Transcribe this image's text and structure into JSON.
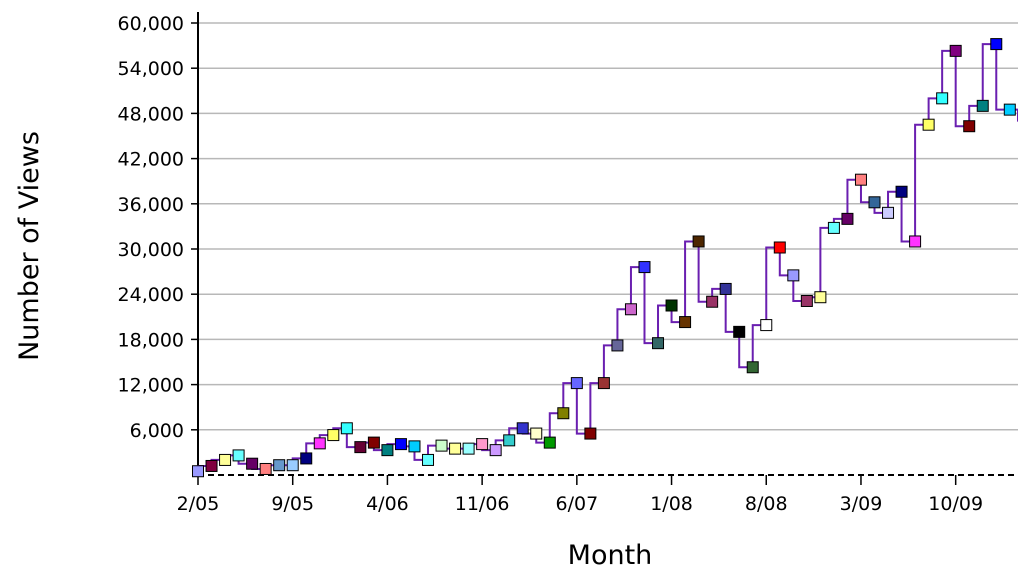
{
  "chart_data": {
    "type": "line",
    "xlabel": "Month",
    "ylabel": "Number of Views",
    "ylim": [
      0,
      60000
    ],
    "yticks": [
      6000,
      12000,
      18000,
      24000,
      30000,
      36000,
      42000,
      48000,
      54000,
      60000
    ],
    "ytick_labels": [
      "6,000",
      "12,000",
      "18,000",
      "24,000",
      "30,000",
      "36,000",
      "42,000",
      "48,000",
      "54,000",
      "60,000"
    ],
    "xtick_labels": [
      {
        "index": 0,
        "label": "2/05"
      },
      {
        "index": 7,
        "label": "9/05"
      },
      {
        "index": 14,
        "label": "4/06"
      },
      {
        "index": 21,
        "label": "11/06"
      },
      {
        "index": 28,
        "label": "6/07"
      },
      {
        "index": 35,
        "label": "1/08"
      },
      {
        "index": 42,
        "label": "8/08"
      },
      {
        "index": 49,
        "label": "3/09"
      },
      {
        "index": 56,
        "label": "10/09"
      }
    ],
    "grid": true,
    "line_color": "#6a1fb0",
    "series": [
      {
        "values": [
          500,
          1200,
          2000,
          2600,
          1500,
          800,
          1300,
          1300,
          2200,
          4200,
          5300,
          6200,
          3700,
          4300,
          3300,
          4100,
          3800,
          2000,
          3900,
          3500,
          3500,
          4100,
          3300,
          4600,
          6200,
          5500,
          4300,
          8200,
          12200,
          5500,
          12200,
          17200,
          22000,
          27600,
          17500,
          22500,
          20300,
          31000,
          23000,
          24700,
          19000,
          14300,
          19900,
          30200,
          26500,
          23100,
          23600,
          32800,
          34000,
          39200,
          36200,
          34800,
          37600,
          31000,
          46500,
          50000,
          56300,
          46300,
          49000,
          57200,
          48500
        ],
        "colors": [
          "#9999ff",
          "#800040",
          "#ffff99",
          "#66ffff",
          "#660066",
          "#ff8080",
          "#6699cc",
          "#99ccff",
          "#000080",
          "#ff33ff",
          "#ffff66",
          "#33ffff",
          "#660033",
          "#800000",
          "#008080",
          "#0000ff",
          "#00ccff",
          "#66ffff",
          "#ccffcc",
          "#ffff99",
          "#99ffff",
          "#ff99cc",
          "#cc99ff",
          "#33cccc",
          "#3333cc",
          "#ffffcc",
          "#009900",
          "#808000",
          "#6666ff",
          "#800000",
          "#993333",
          "#666699",
          "#cc66cc",
          "#3333ff",
          "#336666",
          "#003300",
          "#663300",
          "#4d2600",
          "#993366",
          "#333399",
          "#000000",
          "#336633",
          "#ffffff",
          "#ff0000",
          "#9999ff",
          "#993366",
          "#ffff99",
          "#66ffff",
          "#660066",
          "#ff8080",
          "#336699",
          "#ccccff",
          "#000080",
          "#ff33ff",
          "#ffff66",
          "#33ffff",
          "#800080",
          "#800000",
          "#008080",
          "#0000ff",
          "#00ccff"
        ]
      }
    ]
  }
}
